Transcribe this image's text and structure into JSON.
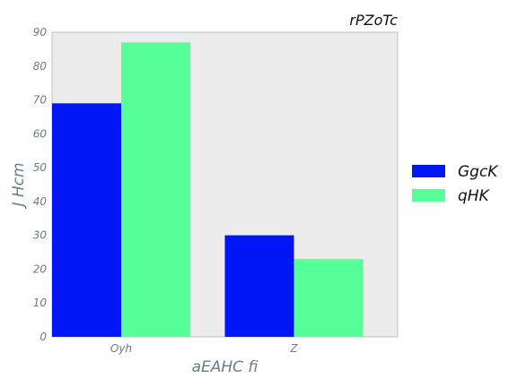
{
  "chart_data": {
    "type": "bar",
    "title": "rPZoTc",
    "xlabel": "aEAHC fi",
    "ylabel": "J Hcm",
    "categories": [
      "Oyh",
      "Z"
    ],
    "series": [
      {
        "name": "GgcK",
        "values": [
          69,
          30
        ],
        "color": "#0016f5"
      },
      {
        "name": "qHK",
        "values": [
          87,
          23
        ],
        "color": "#57ff99"
      }
    ],
    "ylim": [
      0,
      90
    ],
    "yticks": [
      "0",
      "10",
      "20",
      "30",
      "40",
      "50",
      "60",
      "70",
      "80",
      "90"
    ],
    "grid": false,
    "legend_position": "right",
    "plot_background": "#ececec"
  }
}
